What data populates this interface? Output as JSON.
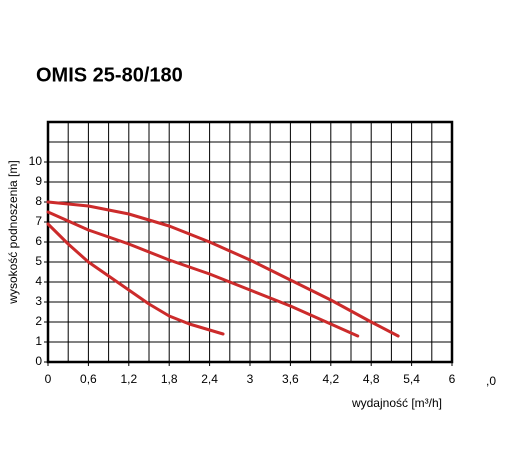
{
  "chart_data": {
    "type": "line",
    "title": "OMIS 25-80/180",
    "x_label": "wydajność [m³/h]",
    "y_label": "wysokość podnoszenia [m]",
    "annotation": ",0",
    "xlim": [
      0,
      6
    ],
    "ylim": [
      0,
      12
    ],
    "xticks": [
      0,
      {
        "value": 0.6,
        "label": "0,6"
      },
      {
        "value": 1.2,
        "label": "1,2"
      },
      {
        "value": 1.8,
        "label": "1,8"
      },
      {
        "value": 2.4,
        "label": "2,4"
      },
      3,
      {
        "value": 3.6,
        "label": "3,6"
      },
      {
        "value": 4.2,
        "label": "4,2"
      },
      {
        "value": 4.8,
        "label": "4,8"
      },
      {
        "value": 5.4,
        "label": "5,4"
      },
      6
    ],
    "yticks": [
      0,
      1,
      2,
      3,
      4,
      5,
      6,
      7,
      8,
      9,
      10
    ],
    "x_gridlines": [
      0.3,
      0.6,
      0.9,
      1.2,
      1.5,
      1.8,
      2.1,
      2.4,
      2.7,
      3,
      3.3,
      3.6,
      3.9,
      4.2,
      4.5,
      4.8,
      5.1,
      5.4,
      5.7
    ],
    "y_gridlines": [
      1,
      2,
      3,
      4,
      5,
      6,
      7,
      8,
      9,
      10,
      11
    ],
    "grid": true,
    "series": [
      {
        "color": "#cc2b2b",
        "x": [
          0,
          0.3,
          0.6,
          0.9,
          1.2,
          1.5,
          1.8,
          2.1,
          2.4,
          2.6
        ],
        "values": [
          6.9,
          5.9,
          5.0,
          4.3,
          3.6,
          2.9,
          2.3,
          1.9,
          1.6,
          1.4
        ]
      },
      {
        "color": "#cc2b2b",
        "x": [
          0,
          0.6,
          1.2,
          1.8,
          2.4,
          3.0,
          3.6,
          4.2,
          4.6
        ],
        "values": [
          7.5,
          6.6,
          5.9,
          5.1,
          4.4,
          3.6,
          2.8,
          1.9,
          1.3
        ]
      },
      {
        "color": "#cc2b2b",
        "x": [
          0,
          0.6,
          1.2,
          1.8,
          2.4,
          3.0,
          3.6,
          4.2,
          4.8,
          5.2
        ],
        "values": [
          8.0,
          7.8,
          7.4,
          6.8,
          6.0,
          5.1,
          4.1,
          3.1,
          2.0,
          1.3
        ]
      }
    ]
  }
}
